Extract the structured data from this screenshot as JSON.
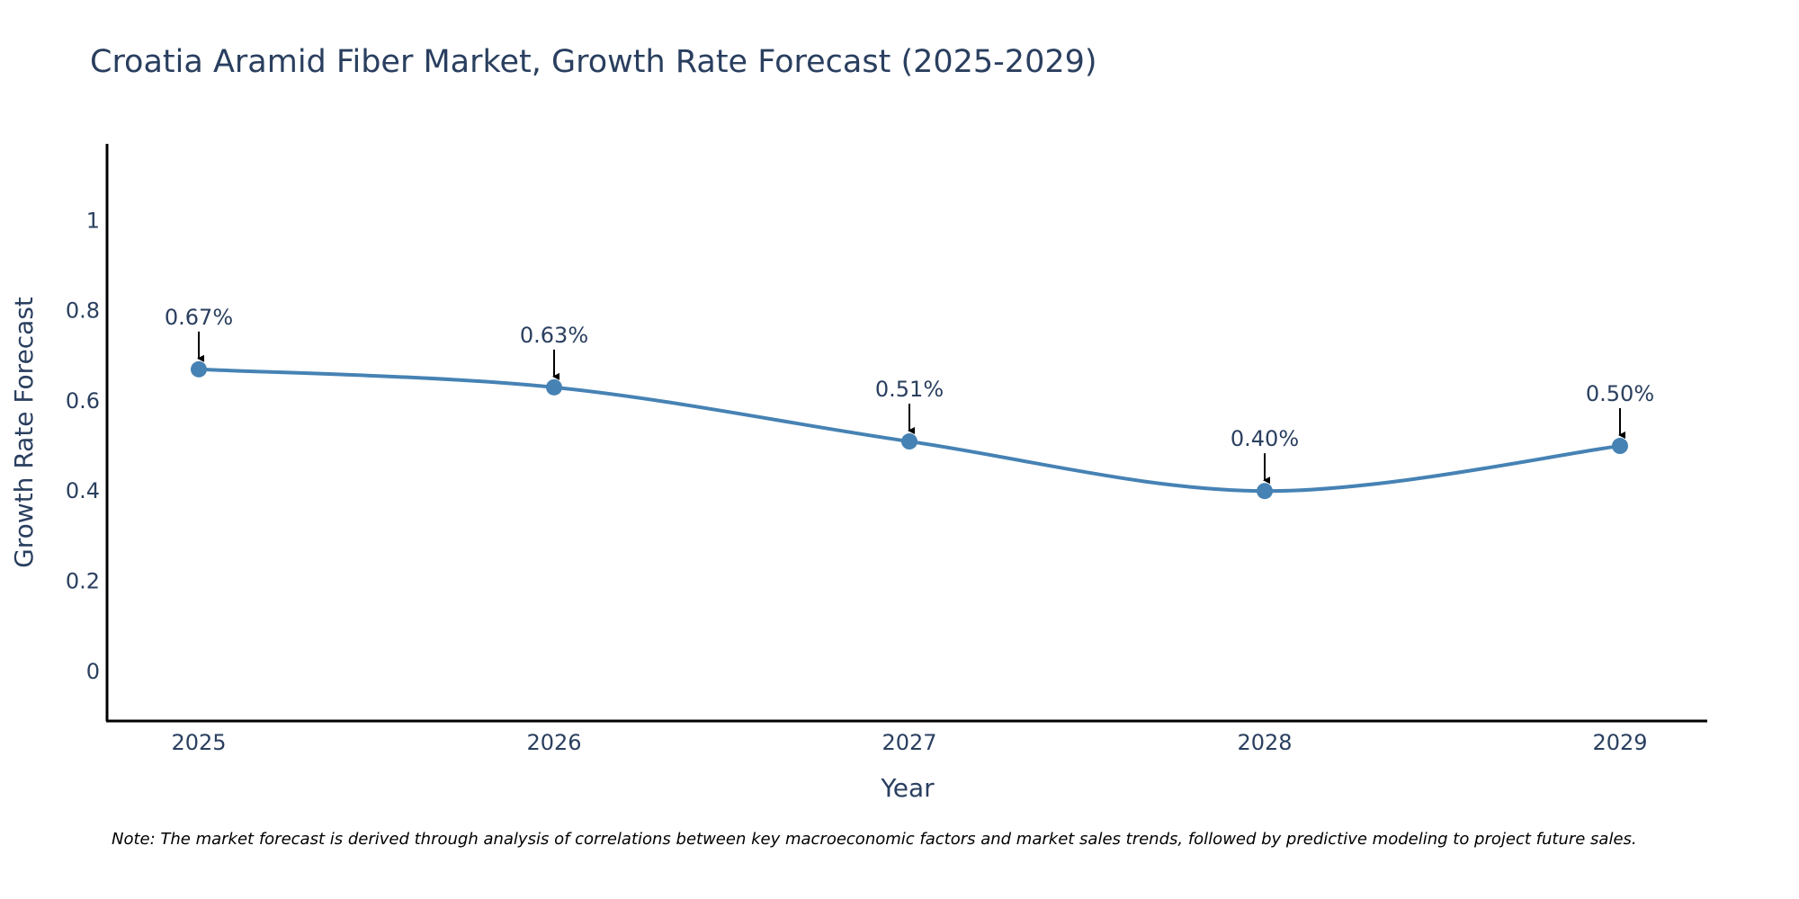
{
  "chart_data": {
    "type": "line",
    "title": "Croatia Aramid Fiber Market, Growth Rate Forecast (2025-2029)",
    "xlabel": "Year",
    "ylabel": "Growth Rate Forecast",
    "categories": [
      "2025",
      "2026",
      "2027",
      "2028",
      "2029"
    ],
    "series": [
      {
        "name": "Growth Rate Forecast",
        "values": [
          0.67,
          0.63,
          0.51,
          0.4,
          0.5
        ],
        "color": "#4682b4"
      }
    ],
    "data_labels": [
      "0.67%",
      "0.63%",
      "0.51%",
      "0.40%",
      "0.50%"
    ],
    "ylim": [
      -0.11,
      1.17
    ],
    "yticks": [
      0,
      0.2,
      0.4,
      0.6,
      0.8,
      1
    ],
    "ytick_labels": [
      "0",
      "0.2",
      "0.4",
      "0.6",
      "0.8",
      "1"
    ],
    "grid": false,
    "note": "Note: The market forecast is derived through analysis of correlations between key macroeconomic factors and market sales trends, followed by predictive modeling to project future sales."
  }
}
